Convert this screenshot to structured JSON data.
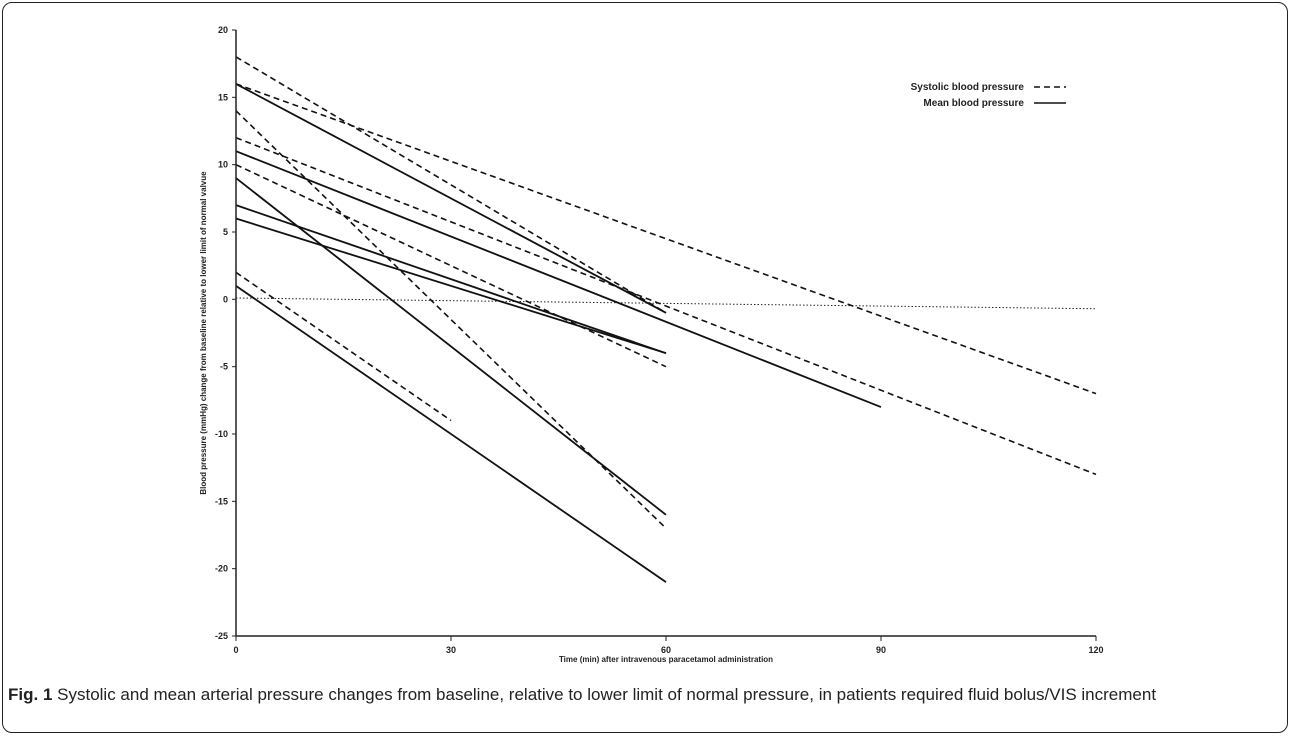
{
  "figure": {
    "label": "Fig. 1",
    "caption": "Systolic and mean arterial pressure changes from baseline, relative to lower limit of normal pressure, in patients required fluid bolus/VIS increment"
  },
  "chart_data": {
    "type": "line",
    "xlabel": "Time  (min)  after  intravenous paracetamol administration",
    "ylabel": "Blood pressure (mmHg) change from baseline relative to lower limit of normal valvue",
    "xlim": [
      0,
      120
    ],
    "ylim": [
      -25,
      20
    ],
    "x_ticks": [
      0,
      30,
      60,
      90,
      120
    ],
    "y_ticks": [
      20,
      15,
      10,
      5,
      0,
      -5,
      -10,
      -15,
      -20,
      -25
    ],
    "grid": false,
    "legend_position": "top-right",
    "legend": [
      {
        "label": "Systolic blood pressure",
        "style": "dashed"
      },
      {
        "label": "Mean blood pressure",
        "style": "solid"
      }
    ],
    "reference_line": {
      "style": "dotted",
      "points": [
        [
          0,
          0.1
        ],
        [
          120,
          -0.7
        ]
      ]
    },
    "series": [
      {
        "style": "dashed",
        "points": [
          [
            0,
            18
          ],
          [
            60,
            -1
          ]
        ]
      },
      {
        "style": "dashed",
        "points": [
          [
            0,
            16
          ],
          [
            120,
            -7
          ]
        ]
      },
      {
        "style": "dashed",
        "points": [
          [
            0,
            14
          ],
          [
            60,
            -17
          ]
        ]
      },
      {
        "style": "dashed",
        "points": [
          [
            0,
            12
          ],
          [
            120,
            -13
          ]
        ]
      },
      {
        "style": "dashed",
        "points": [
          [
            0,
            10
          ],
          [
            60,
            -5
          ]
        ]
      },
      {
        "style": "dashed",
        "points": [
          [
            0,
            2
          ],
          [
            30,
            -9
          ]
        ]
      },
      {
        "style": "solid",
        "points": [
          [
            0,
            16
          ],
          [
            60,
            -1
          ]
        ]
      },
      {
        "style": "solid",
        "points": [
          [
            0,
            11
          ],
          [
            90,
            -8
          ]
        ]
      },
      {
        "style": "solid",
        "points": [
          [
            0,
            9
          ],
          [
            60,
            -16
          ]
        ]
      },
      {
        "style": "solid",
        "points": [
          [
            0,
            7
          ],
          [
            60,
            -4
          ]
        ]
      },
      {
        "style": "solid",
        "points": [
          [
            0,
            6
          ],
          [
            60,
            -4
          ]
        ]
      },
      {
        "style": "solid",
        "points": [
          [
            0,
            1
          ],
          [
            60,
            -21
          ]
        ]
      }
    ]
  }
}
